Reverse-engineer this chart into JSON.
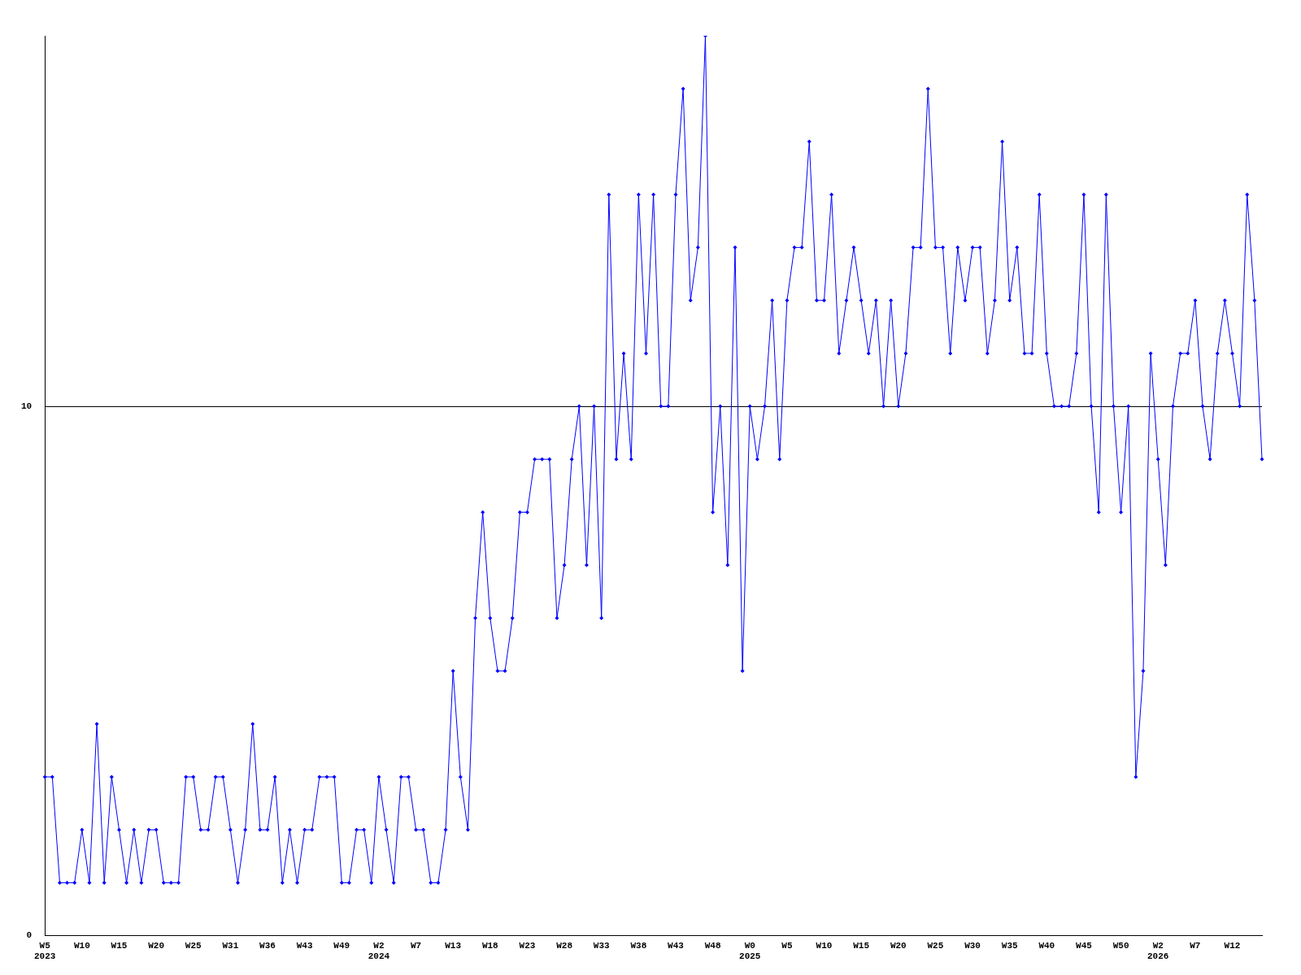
{
  "chart_data": {
    "type": "line",
    "categories": [
      "W5\n2023",
      null,
      null,
      null,
      null,
      "W10",
      null,
      null,
      null,
      null,
      "W15",
      null,
      null,
      null,
      null,
      "W20",
      null,
      null,
      null,
      null,
      "W25",
      null,
      null,
      null,
      null,
      "W31",
      null,
      null,
      null,
      null,
      "W36",
      null,
      null,
      null,
      null,
      "W43",
      null,
      null,
      null,
      null,
      "W49",
      null,
      null,
      null,
      null,
      "W2\n2024",
      null,
      null,
      null,
      null,
      "W7",
      null,
      null,
      null,
      null,
      "W13",
      null,
      null,
      null,
      null,
      "W18",
      null,
      null,
      null,
      null,
      "W23",
      null,
      null,
      null,
      null,
      "W28",
      null,
      null,
      null,
      null,
      "W33",
      null,
      null,
      null,
      null,
      "W38",
      null,
      null,
      null,
      null,
      "W43",
      null,
      null,
      null,
      null,
      "W48",
      null,
      null,
      null,
      null,
      "W0\n2025",
      null,
      null,
      null,
      null,
      "W5",
      null,
      null,
      null,
      null,
      "W10",
      null,
      null,
      null,
      null,
      "W15",
      null,
      null,
      null,
      null,
      "W20",
      null,
      null,
      null,
      null,
      "W25",
      null,
      null,
      null,
      null,
      "W30",
      null,
      null,
      null,
      null,
      "W35",
      null,
      null,
      null,
      null,
      "W40",
      null,
      null,
      null,
      null,
      "W45",
      null,
      null,
      null,
      null,
      "W50",
      null,
      null,
      null,
      null,
      "W2\n2026",
      null,
      null,
      null,
      null,
      "W7",
      null,
      null,
      null,
      null,
      "W12",
      null,
      null,
      null,
      null
    ],
    "series": [
      {
        "color": "#0000ff",
        "values": [
          3,
          3,
          1,
          1,
          1,
          2,
          1,
          4,
          1,
          3,
          2,
          1,
          2,
          1,
          2,
          2,
          1,
          1,
          1,
          3,
          3,
          2,
          2,
          3,
          3,
          2,
          1,
          2,
          4,
          2,
          2,
          3,
          1,
          2,
          1,
          2,
          2,
          3,
          3,
          3,
          1,
          1,
          2,
          2,
          1,
          3,
          2,
          1,
          3,
          3,
          2,
          2,
          1,
          1,
          2,
          5,
          3,
          2,
          6,
          8,
          6,
          5,
          5,
          6,
          8,
          8,
          9,
          9,
          9,
          6,
          7,
          9,
          10,
          7,
          10,
          6,
          14,
          9,
          11,
          9,
          14,
          11,
          14,
          10,
          10,
          14,
          16,
          12,
          13,
          17,
          8,
          10,
          7,
          13,
          5,
          10,
          9,
          10,
          12,
          9,
          12,
          13,
          13,
          15,
          12,
          12,
          14,
          11,
          12,
          13,
          12,
          11,
          12,
          10,
          12,
          10,
          11,
          13,
          13,
          16,
          13,
          13,
          11,
          13,
          12,
          13,
          13,
          11,
          12,
          15,
          12,
          13,
          11,
          11,
          14,
          11,
          10,
          10,
          10,
          11,
          14,
          10,
          8,
          14,
          10,
          8,
          10,
          3,
          5,
          11,
          9,
          7,
          10,
          11,
          11,
          12,
          10,
          9,
          11,
          12,
          11,
          10,
          14,
          12,
          9
        ]
      }
    ],
    "ylim": [
      0,
      17
    ],
    "yticks": [
      0,
      10
    ],
    "grid": "y",
    "marker": "diamond",
    "line_style": "solid",
    "legend": false
  }
}
